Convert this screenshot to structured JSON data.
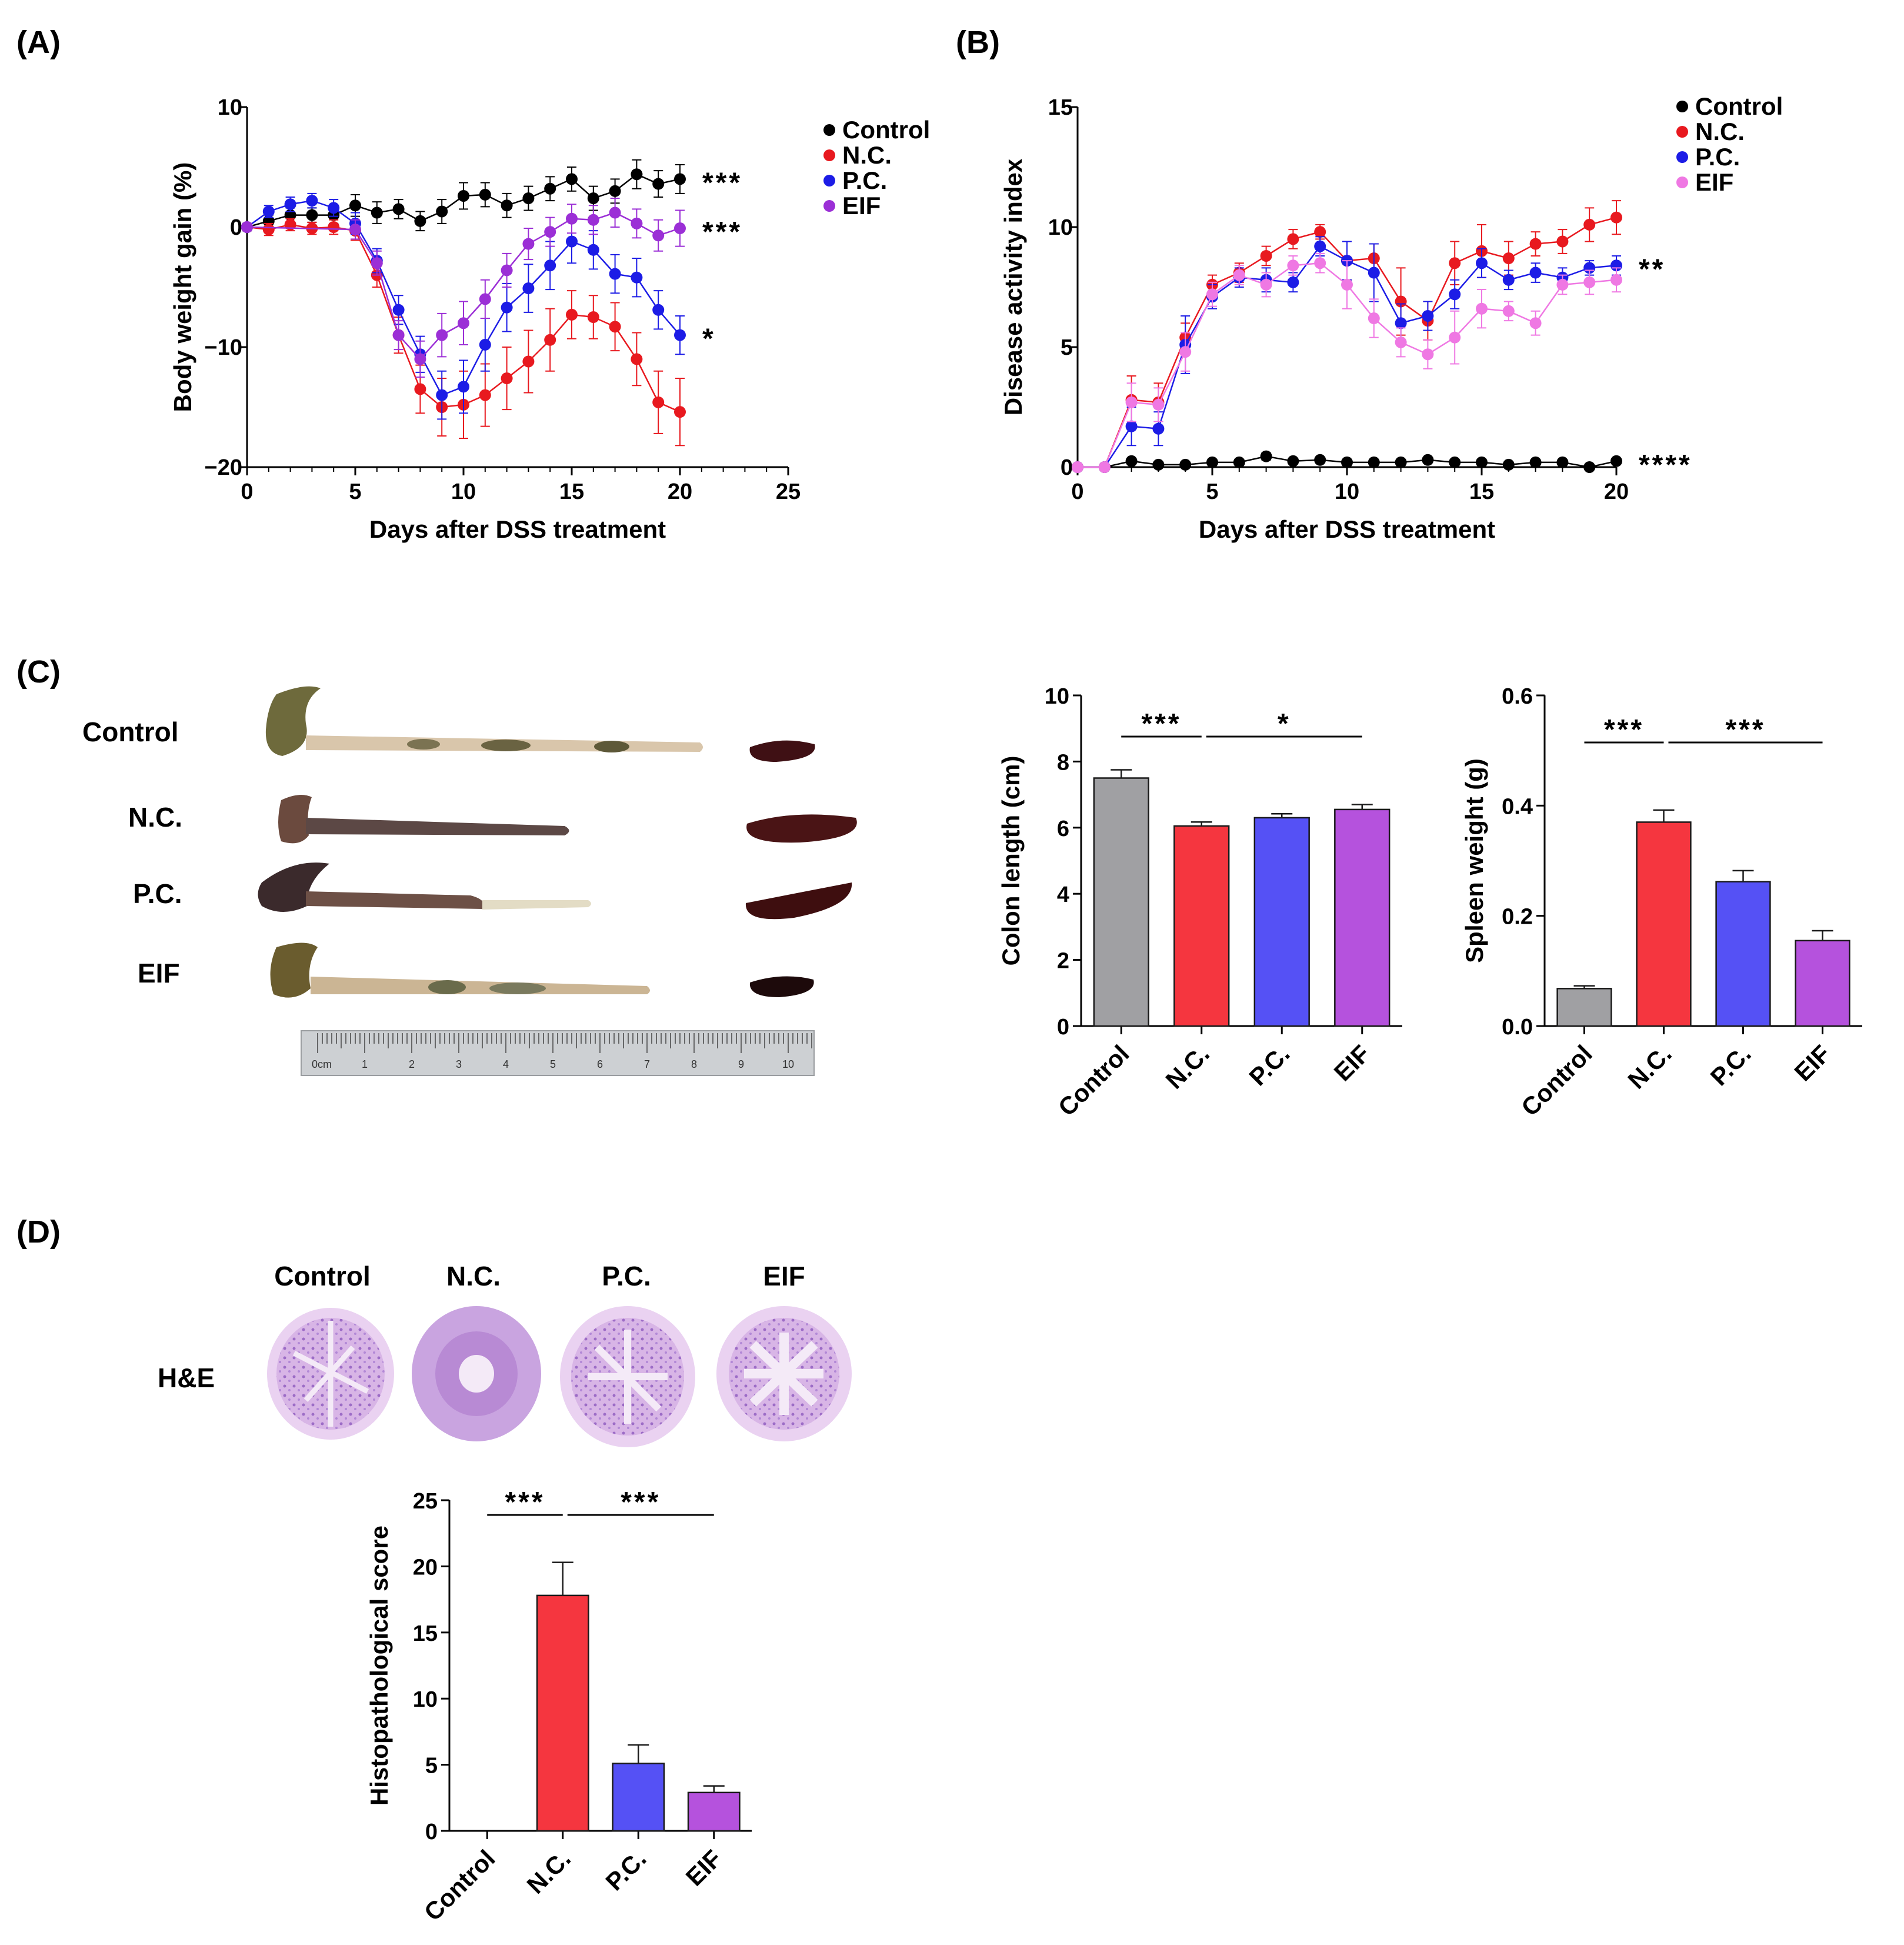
{
  "panel_labels": {
    "a": "(A)",
    "b": "(B)",
    "c": "(C)",
    "d": "(D)"
  },
  "colors": {
    "control": "#000000",
    "nc": "#e8191f",
    "pc": "#1c1ce6",
    "eif_a": "#9b2fd6",
    "eif_b": "#ef78e3",
    "bar_control": "#a0a0a3",
    "bar_nc": "#f5363f",
    "bar_pc": "#5551f5",
    "bar_eif": "#b552dd"
  },
  "photo_labels": {
    "specimens": [
      "Control",
      "N.C.",
      "P.C.",
      "EIF"
    ],
    "ruler_unit": "0cm",
    "ruler_numbers": [
      "1",
      "2",
      "3",
      "4",
      "5",
      "6",
      "7",
      "8",
      "9",
      "10"
    ],
    "he_columns": [
      "Control",
      "N.C.",
      "P.C.",
      "EIF"
    ],
    "he_row": "H&E"
  },
  "chart_data": [
    {
      "id": "A",
      "type": "line",
      "xlabel": "Days after DSS treatment",
      "ylabel": "Body weight gain (%)",
      "xlim": [
        0,
        25
      ],
      "ylim": [
        -20,
        10
      ],
      "xticks": [
        "0",
        "5",
        "10",
        "15",
        "20",
        "25"
      ],
      "yticks": [
        "−20",
        "−10",
        "0",
        "10"
      ],
      "legend": [
        "Control",
        "N.C.",
        "P.C.",
        "EIF"
      ],
      "series": [
        {
          "name": "Control",
          "color": "#000000",
          "sig": "***",
          "x": [
            0,
            1,
            2,
            3,
            4,
            5,
            6,
            7,
            8,
            9,
            10,
            11,
            12,
            13,
            14,
            15,
            16,
            17,
            18,
            19,
            20
          ],
          "y": [
            0,
            0.5,
            1,
            1,
            1,
            1.8,
            1.2,
            1.5,
            0.5,
            1.3,
            2.6,
            2.7,
            1.8,
            2.4,
            3.2,
            4,
            2.4,
            3,
            4.4,
            3.6,
            4
          ],
          "err": [
            0.3,
            0.5,
            0.6,
            0.6,
            0.7,
            0.9,
            0.9,
            0.8,
            0.8,
            1,
            1.1,
            1,
            1,
            1,
            1,
            1,
            1,
            1,
            1.2,
            1.1,
            1.2
          ]
        },
        {
          "name": "N.C.",
          "color": "#e8191f",
          "sig": "",
          "x": [
            0,
            1,
            2,
            3,
            4,
            5,
            6,
            7,
            8,
            9,
            10,
            11,
            12,
            13,
            14,
            15,
            16,
            17,
            18,
            19,
            20
          ],
          "y": [
            0,
            -0.2,
            0.2,
            -0.1,
            0,
            -0.3,
            -4,
            -9,
            -13.5,
            -15,
            -14.8,
            -14,
            -12.6,
            -11.2,
            -9.4,
            -7.3,
            -7.5,
            -8.3,
            -11,
            -14.6,
            -15.4
          ],
          "err": [
            0.3,
            0.5,
            0.5,
            0.5,
            0.6,
            0.8,
            1,
            1.5,
            2,
            2.4,
            2.8,
            2.6,
            2.6,
            2.6,
            2.6,
            2,
            1.8,
            2,
            2.2,
            2.6,
            2.8
          ]
        },
        {
          "name": "P.C.",
          "color": "#1c1ce6",
          "sig": "*",
          "x": [
            0,
            1,
            2,
            3,
            4,
            5,
            6,
            7,
            8,
            9,
            10,
            11,
            12,
            13,
            14,
            15,
            16,
            17,
            18,
            19,
            20
          ],
          "y": [
            0,
            1.3,
            1.9,
            2.2,
            1.6,
            0.3,
            -2.8,
            -6.9,
            -10.6,
            -14,
            -13.3,
            -9.8,
            -6.7,
            -5.1,
            -3.2,
            -1.2,
            -1.9,
            -3.9,
            -4.2,
            -6.9,
            -9
          ],
          "err": [
            0.3,
            0.5,
            0.6,
            0.6,
            0.7,
            0.9,
            1,
            1.2,
            1.5,
            2,
            2.2,
            2.2,
            2,
            2,
            2,
            1.8,
            1.6,
            1.6,
            1.6,
            1.6,
            1.6
          ]
        },
        {
          "name": "EIF",
          "color": "#9b2fd6",
          "sig": "***",
          "x": [
            0,
            5,
            6,
            7,
            8,
            9,
            10,
            11,
            12,
            13,
            14,
            15,
            16,
            17,
            18,
            19,
            20
          ],
          "y": [
            0,
            -0.2,
            -3,
            -9,
            -11,
            -9,
            -8,
            -6,
            -3.6,
            -1.4,
            -0.4,
            0.7,
            0.6,
            1.2,
            0.3,
            -0.7,
            -0.1
          ],
          "err": [
            0.3,
            0.8,
            1,
            1.2,
            1.5,
            1.8,
            1.8,
            1.6,
            1.4,
            1.3,
            1.2,
            1.2,
            1.2,
            1.2,
            1.2,
            1.3,
            1.5
          ]
        }
      ]
    },
    {
      "id": "B",
      "type": "line",
      "xlabel": "Days after DSS treatment",
      "ylabel": "Disease activity index",
      "xlim": [
        0,
        20
      ],
      "ylim": [
        0,
        15
      ],
      "xticks": [
        "0",
        "5",
        "10",
        "15",
        "20"
      ],
      "yticks": [
        "0",
        "5",
        "10",
        "15"
      ],
      "legend": [
        "Control",
        "N.C.",
        "P.C.",
        "EIF"
      ],
      "series": [
        {
          "name": "Control",
          "color": "#000000",
          "sig": "****",
          "x": [
            0,
            1,
            2,
            3,
            4,
            5,
            6,
            7,
            8,
            9,
            10,
            11,
            12,
            13,
            14,
            15,
            16,
            17,
            18,
            19,
            20
          ],
          "y": [
            0,
            0,
            0.25,
            0.1,
            0.1,
            0.2,
            0.2,
            0.45,
            0.25,
            0.3,
            0.2,
            0.2,
            0.2,
            0.3,
            0.2,
            0.2,
            0.1,
            0.2,
            0.2,
            0,
            0.25
          ],
          "err": [
            0,
            0,
            0.1,
            0.1,
            0.1,
            0.1,
            0.1,
            0.15,
            0.1,
            0.1,
            0.1,
            0.1,
            0.1,
            0.1,
            0.1,
            0.1,
            0.1,
            0.1,
            0.1,
            0.1,
            0.1
          ]
        },
        {
          "name": "N.C.",
          "color": "#e8191f",
          "sig": "",
          "x": [
            0,
            1,
            2,
            3,
            4,
            5,
            6,
            7,
            8,
            9,
            10,
            11,
            12,
            13,
            14,
            15,
            16,
            17,
            18,
            19,
            20
          ],
          "y": [
            0,
            0,
            2.8,
            2.7,
            5.4,
            7.6,
            8.1,
            8.8,
            9.5,
            9.8,
            8.6,
            8.7,
            6.9,
            6.1,
            8.5,
            9,
            8.7,
            9.3,
            9.4,
            10.1,
            10.4
          ],
          "err": [
            0,
            0,
            1,
            0.8,
            0.6,
            0.4,
            0.4,
            0.4,
            0.4,
            0.3,
            0.8,
            0.6,
            1.4,
            0.8,
            0.9,
            1.1,
            0.7,
            0.5,
            0.5,
            0.7,
            0.7
          ]
        },
        {
          "name": "P.C.",
          "color": "#1c1ce6",
          "sig": "**",
          "x": [
            0,
            1,
            2,
            3,
            4,
            5,
            6,
            7,
            8,
            9,
            10,
            11,
            12,
            13,
            14,
            15,
            16,
            17,
            18,
            19,
            20
          ],
          "y": [
            0,
            0,
            1.7,
            1.6,
            5.1,
            7.1,
            7.9,
            7.8,
            7.7,
            9.2,
            8.6,
            8.1,
            6,
            6.3,
            7.2,
            8.5,
            7.8,
            8.1,
            7.9,
            8.3,
            8.4
          ],
          "err": [
            0,
            0,
            0.8,
            0.7,
            1.2,
            0.5,
            0.4,
            0.5,
            0.4,
            0.4,
            0.8,
            1.2,
            0.8,
            0.6,
            0.6,
            0.6,
            0.4,
            0.4,
            0.4,
            0.3,
            0.4
          ]
        },
        {
          "name": "EIF",
          "color": "#ef78e3",
          "sig": "",
          "x": [
            0,
            1,
            2,
            3,
            4,
            5,
            6,
            7,
            8,
            9,
            10,
            11,
            12,
            13,
            14,
            15,
            16,
            17,
            18,
            19,
            20
          ],
          "y": [
            0,
            0,
            2.7,
            2.6,
            4.8,
            7.2,
            8,
            7.6,
            8.4,
            8.5,
            7.6,
            6.2,
            5.2,
            4.7,
            5.4,
            6.6,
            6.5,
            6,
            7.6,
            7.7,
            7.8
          ],
          "err": [
            0,
            0,
            0.8,
            0.7,
            0.8,
            0.5,
            0.4,
            0.5,
            0.4,
            0.4,
            1,
            0.8,
            0.6,
            0.6,
            1.1,
            0.8,
            0.4,
            0.5,
            0.4,
            0.5,
            0.5
          ]
        }
      ]
    },
    {
      "id": "C1",
      "type": "bar",
      "ylabel": "Colon length (cm)",
      "categories": [
        "Control",
        "N.C.",
        "P.C.",
        "EIF"
      ],
      "values": [
        7.5,
        6.05,
        6.3,
        6.55
      ],
      "err": [
        0.25,
        0.12,
        0.12,
        0.15
      ],
      "ylim": [
        0,
        10
      ],
      "yticks": [
        "0",
        "2",
        "4",
        "6",
        "8",
        "10"
      ],
      "colors": [
        "#a0a0a3",
        "#f5363f",
        "#5551f5",
        "#b552dd"
      ],
      "brackets": [
        {
          "from": 0,
          "to": 1,
          "label": "***"
        },
        {
          "from": 1,
          "to": 3,
          "label": "*"
        }
      ]
    },
    {
      "id": "C2",
      "type": "bar",
      "ylabel": "Spleen weight (g)",
      "categories": [
        "Control",
        "N.C.",
        "P.C.",
        "EIF"
      ],
      "values": [
        0.068,
        0.37,
        0.262,
        0.155
      ],
      "err": [
        0.005,
        0.022,
        0.02,
        0.018
      ],
      "ylim": [
        0,
        0.6
      ],
      "yticks": [
        "0.0",
        "0.2",
        "0.4",
        "0.6"
      ],
      "colors": [
        "#a0a0a3",
        "#f5363f",
        "#5551f5",
        "#b552dd"
      ],
      "brackets": [
        {
          "from": 0,
          "to": 1,
          "label": "***"
        },
        {
          "from": 1,
          "to": 3,
          "label": "***"
        }
      ]
    },
    {
      "id": "D",
      "type": "bar",
      "ylabel": "Histopathological score",
      "categories": [
        "Control",
        "N.C.",
        "P.C.",
        "EIF"
      ],
      "values": [
        0,
        17.8,
        5.1,
        2.9
      ],
      "err": [
        0,
        2.5,
        1.4,
        0.5
      ],
      "ylim": [
        0,
        25
      ],
      "yticks": [
        "0",
        "5",
        "10",
        "15",
        "20",
        "25"
      ],
      "colors": [
        "#a0a0a3",
        "#f5363f",
        "#5551f5",
        "#b552dd"
      ],
      "brackets": [
        {
          "from": 0,
          "to": 1,
          "label": "***"
        },
        {
          "from": 1,
          "to": 3,
          "label": "***"
        }
      ]
    }
  ]
}
